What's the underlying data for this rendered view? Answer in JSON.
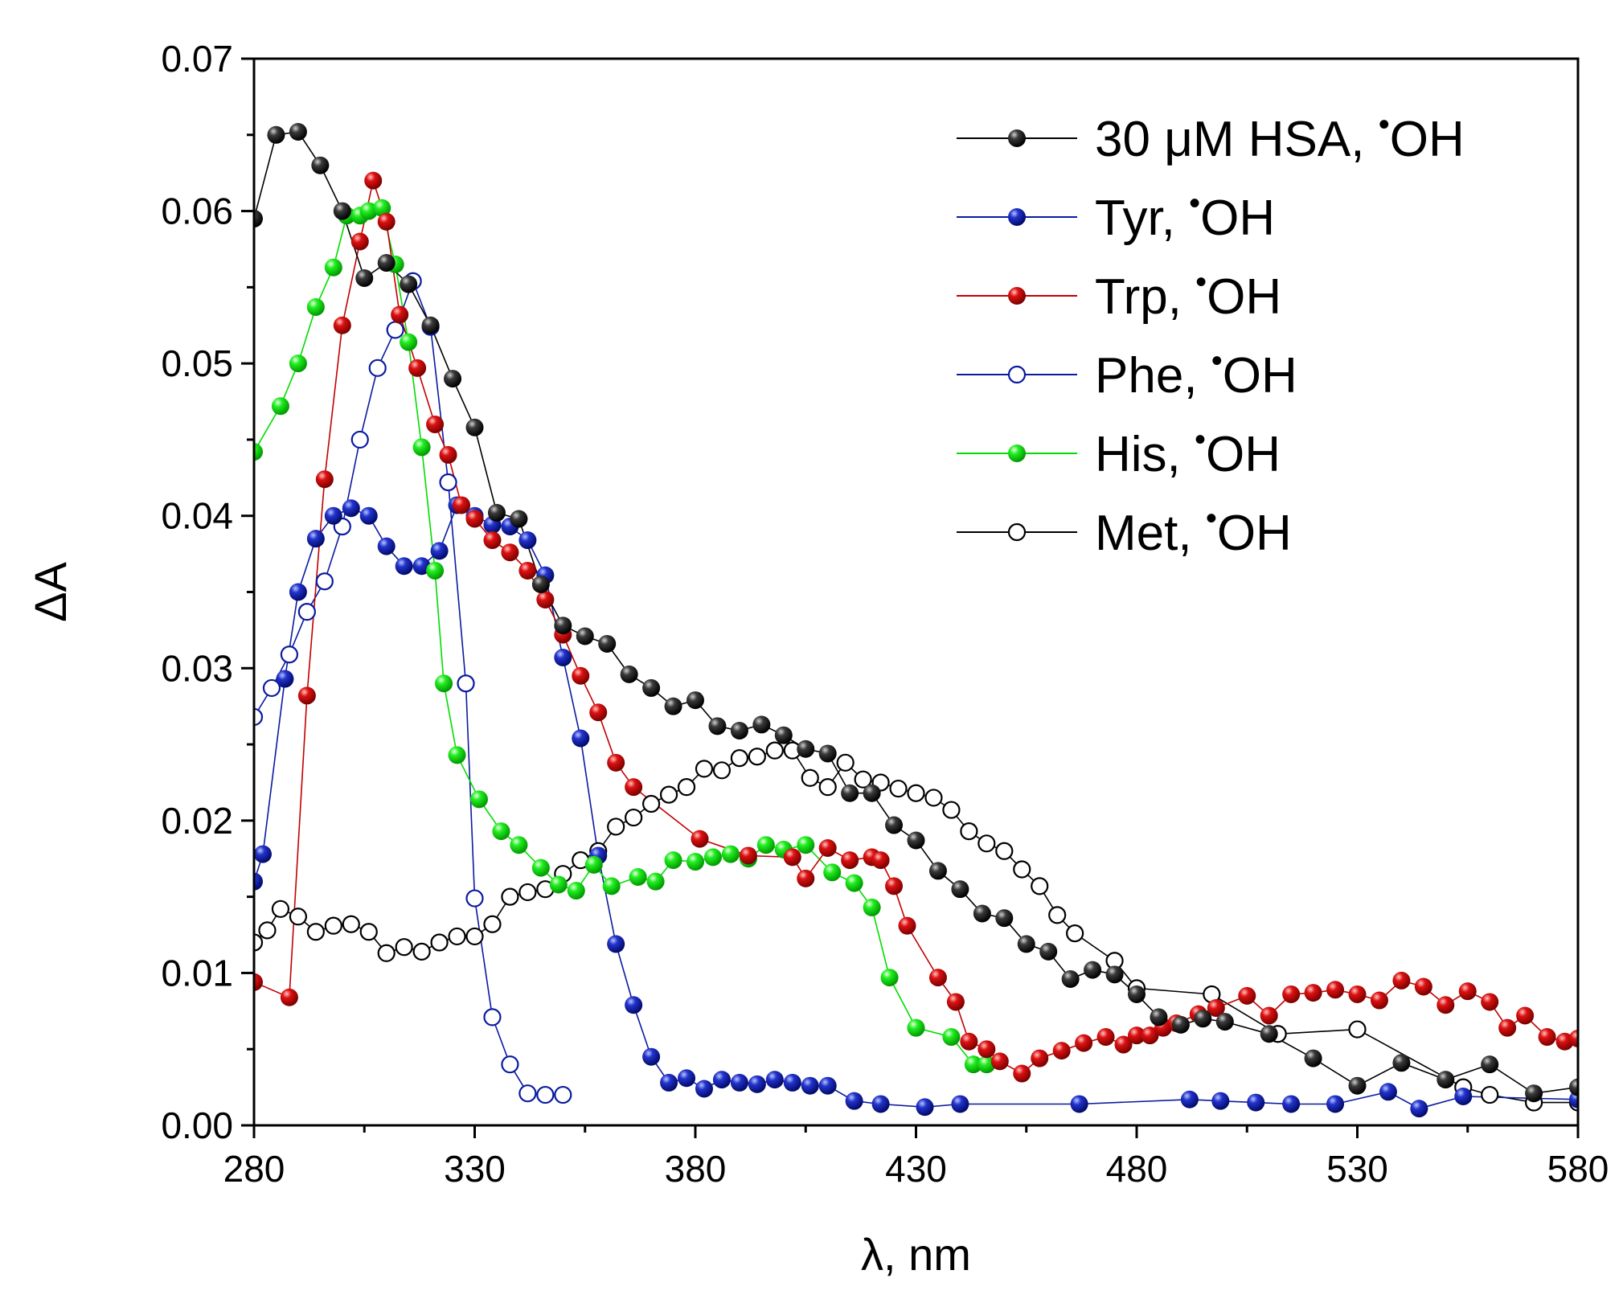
{
  "chart_data": {
    "type": "line",
    "xlabel": "λ, nm",
    "ylabel": "ΔA",
    "xlim": [
      280,
      580
    ],
    "ylim": [
      0,
      0.07
    ],
    "xticks": [
      "280",
      "330",
      "380",
      "430",
      "480",
      "530",
      "580"
    ],
    "yticks": [
      "0.00",
      "0.01",
      "0.02",
      "0.03",
      "0.04",
      "0.05",
      "0.06",
      "0.07"
    ],
    "grid": false,
    "legend_position": "top-right",
    "series": [
      {
        "name": "30 μM HSA, •OH",
        "label_main": "30 μM HSA, ",
        "label_rad": "OH",
        "color": "#000000",
        "marker": "filled-ball",
        "x": [
          280,
          285,
          290,
          295,
          300,
          305,
          310,
          315,
          320,
          325,
          330,
          335,
          340,
          345,
          350,
          355,
          360,
          365,
          370,
          375,
          380,
          385,
          390,
          395,
          400,
          405,
          410,
          415,
          420,
          425,
          430,
          435,
          440,
          445,
          450,
          455,
          460,
          465,
          470,
          475,
          480,
          485,
          490,
          495,
          500,
          510,
          520,
          530,
          540,
          550,
          560,
          570,
          580
        ],
        "y": [
          0.0595,
          0.065,
          0.0652,
          0.063,
          0.06,
          0.0556,
          0.0566,
          0.0552,
          0.0525,
          0.049,
          0.0458,
          0.0402,
          0.0398,
          0.0355,
          0.0328,
          0.0321,
          0.0316,
          0.0296,
          0.0287,
          0.0275,
          0.0279,
          0.0262,
          0.0259,
          0.0263,
          0.0256,
          0.0247,
          0.0244,
          0.0218,
          0.0218,
          0.0197,
          0.0187,
          0.0167,
          0.0155,
          0.0139,
          0.0136,
          0.0119,
          0.0114,
          0.0096,
          0.0102,
          0.0099,
          0.0086,
          0.0071,
          0.0066,
          0.007,
          0.0068,
          0.006,
          0.0044,
          0.0026,
          0.0041,
          0.003,
          0.004,
          0.0021,
          0.0025
        ]
      },
      {
        "name": "Tyr, •OH",
        "label_main": "Tyr, ",
        "label_rad": "OH",
        "color": "#0a1aa0",
        "marker": "filled-ball",
        "x": [
          280,
          282,
          287,
          290,
          294,
          298,
          302,
          306,
          310,
          314,
          318,
          322,
          326,
          330,
          334,
          338,
          342,
          346,
          350,
          354,
          358,
          362,
          366,
          370,
          374,
          378,
          382,
          386,
          390,
          394,
          398,
          402,
          406,
          410,
          416,
          422,
          432,
          440,
          467,
          492,
          499,
          507,
          515,
          525,
          537,
          544,
          554,
          580
        ],
        "y": [
          0.016,
          0.0178,
          0.0293,
          0.035,
          0.0385,
          0.04,
          0.0405,
          0.04,
          0.038,
          0.0367,
          0.0367,
          0.0377,
          0.0407,
          0.04,
          0.0394,
          0.0393,
          0.0384,
          0.0361,
          0.0307,
          0.0254,
          0.0177,
          0.0119,
          0.0079,
          0.0045,
          0.0028,
          0.0031,
          0.0024,
          0.003,
          0.0028,
          0.0027,
          0.003,
          0.0028,
          0.0026,
          0.0026,
          0.0016,
          0.0014,
          0.0012,
          0.0014,
          0.0014,
          0.0017,
          0.0016,
          0.0015,
          0.0014,
          0.0014,
          0.0022,
          0.0011,
          0.0019,
          0.0017
        ]
      },
      {
        "name": "Trp, •OH",
        "label_main": "Trp, ",
        "label_rad": "OH",
        "color": "#c00000",
        "marker": "filled-ball",
        "x": [
          280,
          288,
          292,
          296,
          300,
          304,
          307,
          310,
          313,
          317,
          321,
          324,
          327,
          330,
          334,
          338,
          342,
          346,
          350,
          354,
          358,
          362,
          366,
          381,
          392,
          402,
          405,
          410,
          415,
          420,
          422,
          425,
          428,
          435,
          439,
          442,
          446,
          449,
          454,
          458,
          463,
          468,
          473,
          477,
          480,
          483,
          486,
          489,
          494,
          498,
          505,
          510,
          515,
          520,
          525,
          530,
          535,
          540,
          545,
          550,
          555,
          560,
          564,
          568,
          573,
          577,
          580
        ],
        "y": [
          0.0094,
          0.0084,
          0.0282,
          0.0424,
          0.0525,
          0.058,
          0.062,
          0.0593,
          0.0532,
          0.0497,
          0.046,
          0.044,
          0.0407,
          0.0398,
          0.0384,
          0.0376,
          0.0364,
          0.0345,
          0.0322,
          0.0295,
          0.0271,
          0.0238,
          0.0222,
          0.0188,
          0.0177,
          0.0176,
          0.0162,
          0.0182,
          0.0174,
          0.0176,
          0.0174,
          0.0157,
          0.0131,
          0.0097,
          0.0081,
          0.0055,
          0.005,
          0.0042,
          0.0034,
          0.0044,
          0.0049,
          0.0054,
          0.0058,
          0.0053,
          0.0059,
          0.0059,
          0.0064,
          0.0067,
          0.0073,
          0.0077,
          0.0085,
          0.0072,
          0.0086,
          0.0087,
          0.0089,
          0.0086,
          0.0082,
          0.0095,
          0.0091,
          0.0079,
          0.0088,
          0.0081,
          0.0064,
          0.0072,
          0.0058,
          0.0055,
          0.0057
        ]
      },
      {
        "name": "Phe, •OH",
        "label_main": "Phe, ",
        "label_rad": "OH",
        "color": "#0a1aa0",
        "marker": "open-circle",
        "x": [
          280,
          284,
          288,
          292,
          296,
          300,
          304,
          308,
          312,
          316,
          320,
          324,
          328,
          330,
          334,
          338,
          342,
          346,
          350
        ],
        "y": [
          0.0268,
          0.0287,
          0.0309,
          0.0337,
          0.0357,
          0.0393,
          0.045,
          0.0497,
          0.0522,
          0.0554,
          0.0524,
          0.0422,
          0.029,
          0.0149,
          0.0071,
          0.004,
          0.0021,
          0.002,
          0.002
        ]
      },
      {
        "name": "His, •OH",
        "label_main": "His, ",
        "label_rad": "OH",
        "color": "#00dd00",
        "marker": "filled-ball",
        "x": [
          280,
          286,
          290,
          294,
          298,
          301,
          304,
          306,
          309,
          312,
          315,
          318,
          321,
          323,
          326,
          331,
          336,
          340,
          345,
          349,
          353,
          357,
          361,
          367,
          371,
          375,
          380,
          384,
          388,
          392,
          396,
          400,
          405,
          411,
          416,
          420,
          424,
          430,
          438,
          443,
          446
        ],
        "y": [
          0.0442,
          0.0472,
          0.05,
          0.0537,
          0.0563,
          0.0597,
          0.0597,
          0.06,
          0.0602,
          0.0565,
          0.0514,
          0.0445,
          0.0364,
          0.029,
          0.0243,
          0.0214,
          0.0193,
          0.0184,
          0.0169,
          0.0158,
          0.0154,
          0.0171,
          0.0157,
          0.0163,
          0.016,
          0.0174,
          0.0173,
          0.0176,
          0.0178,
          0.0175,
          0.0184,
          0.0181,
          0.0184,
          0.0166,
          0.0159,
          0.0143,
          0.0097,
          0.0064,
          0.0058,
          0.004,
          0.004
        ]
      },
      {
        "name": "Met, •OH",
        "label_main": "Met, ",
        "label_rad": "OH",
        "color": "#000000",
        "marker": "open-circle",
        "x": [
          280,
          283,
          286,
          290,
          294,
          298,
          302,
          306,
          310,
          314,
          318,
          322,
          326,
          330,
          334,
          338,
          342,
          346,
          350,
          354,
          358,
          362,
          366,
          370,
          374,
          378,
          382,
          386,
          390,
          394,
          398,
          402,
          406,
          410,
          414,
          418,
          422,
          426,
          430,
          434,
          438,
          442,
          446,
          450,
          454,
          458,
          462,
          466,
          475,
          480,
          497,
          512,
          530,
          554,
          560,
          570,
          580
        ],
        "y": [
          0.012,
          0.0128,
          0.0142,
          0.0137,
          0.0127,
          0.0131,
          0.0132,
          0.0127,
          0.0113,
          0.0117,
          0.0114,
          0.012,
          0.0124,
          0.0124,
          0.0132,
          0.015,
          0.0153,
          0.0155,
          0.0165,
          0.0174,
          0.018,
          0.0196,
          0.0202,
          0.0211,
          0.0217,
          0.0222,
          0.0234,
          0.0233,
          0.0241,
          0.0242,
          0.0246,
          0.0246,
          0.0228,
          0.0222,
          0.0238,
          0.0227,
          0.0225,
          0.0221,
          0.0218,
          0.0215,
          0.0207,
          0.0193,
          0.0185,
          0.018,
          0.0168,
          0.0157,
          0.0138,
          0.0126,
          0.0108,
          0.009,
          0.0086,
          0.006,
          0.0063,
          0.0025,
          0.002,
          0.0015,
          0.0015
        ]
      }
    ]
  }
}
